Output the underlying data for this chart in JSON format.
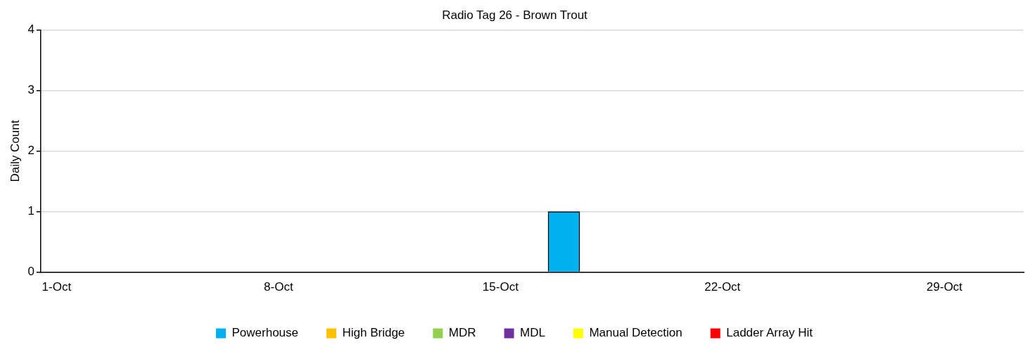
{
  "chart_data": {
    "type": "bar",
    "title": "Radio Tag 26 - Brown Trout",
    "ylabel": "Daily Count",
    "stacked": true,
    "categories": [
      "1-Oct",
      null,
      null,
      null,
      null,
      null,
      null,
      "8-Oct",
      null,
      null,
      null,
      null,
      null,
      null,
      "15-Oct",
      null,
      null,
      null,
      null,
      null,
      null,
      "22-Oct",
      null,
      null,
      null,
      null,
      null,
      null,
      "29-Oct",
      null,
      null
    ],
    "series": [
      {
        "name": "Powerhouse",
        "color": "#00b0f0",
        "values": [
          null,
          null,
          null,
          null,
          null,
          null,
          null,
          null,
          null,
          null,
          null,
          null,
          null,
          null,
          null,
          null,
          1,
          null,
          null,
          null,
          null,
          null,
          null,
          null,
          null,
          null,
          null,
          null,
          null,
          null,
          null
        ]
      },
      {
        "name": "High Bridge",
        "color": "#ffc000",
        "values": [
          null,
          null,
          null,
          null,
          null,
          null,
          null,
          null,
          null,
          null,
          null,
          null,
          null,
          null,
          null,
          null,
          null,
          null,
          null,
          null,
          null,
          null,
          null,
          null,
          null,
          null,
          null,
          null,
          null,
          null,
          null
        ]
      },
      {
        "name": "MDR",
        "color": "#92d050",
        "values": [
          null,
          null,
          null,
          null,
          null,
          null,
          null,
          null,
          null,
          null,
          null,
          null,
          null,
          null,
          null,
          null,
          null,
          null,
          null,
          null,
          null,
          null,
          null,
          null,
          null,
          null,
          null,
          null,
          null,
          null,
          null
        ]
      },
      {
        "name": "MDL",
        "color": "#7030a0",
        "values": [
          null,
          null,
          null,
          null,
          null,
          null,
          null,
          null,
          null,
          null,
          null,
          null,
          null,
          null,
          null,
          null,
          null,
          null,
          null,
          null,
          null,
          null,
          null,
          null,
          null,
          null,
          null,
          null,
          null,
          null,
          null
        ]
      },
      {
        "name": "Manual Detection",
        "color": "#ffff00",
        "values": [
          null,
          null,
          null,
          null,
          null,
          null,
          null,
          null,
          null,
          null,
          null,
          null,
          null,
          null,
          null,
          null,
          null,
          null,
          null,
          null,
          null,
          null,
          null,
          null,
          null,
          null,
          null,
          null,
          null,
          null,
          null
        ]
      },
      {
        "name": "Ladder Array Hit",
        "color": "#ff0000",
        "values": [
          null,
          null,
          null,
          null,
          null,
          null,
          null,
          null,
          null,
          null,
          null,
          null,
          null,
          null,
          null,
          null,
          null,
          null,
          null,
          null,
          null,
          null,
          null,
          null,
          null,
          null,
          null,
          null,
          null,
          null,
          null
        ]
      }
    ],
    "ylim": [
      0,
      4
    ],
    "yticks": [
      0,
      1,
      2,
      3,
      4
    ],
    "grid": "y",
    "legend": "bottom"
  }
}
